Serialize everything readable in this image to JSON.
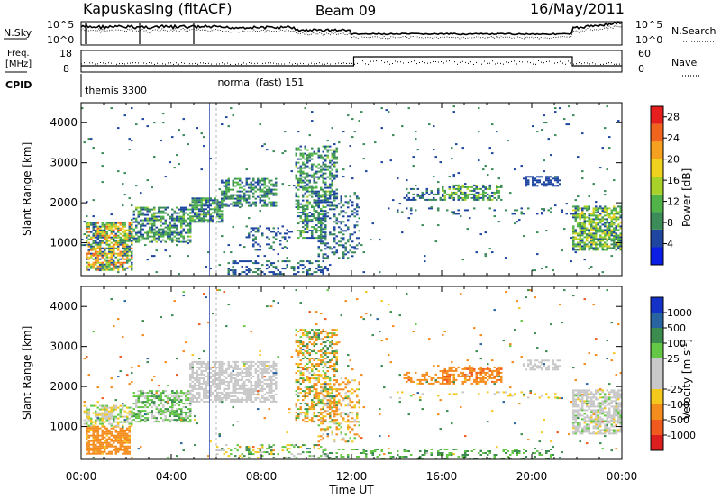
{
  "header": {
    "station": "Kapuskasing (fitACF)",
    "beam": "Beam 09",
    "date": "16/May/2011"
  },
  "noise_panel": {
    "left_label": "N.Sky",
    "left_ticks": [
      "10^5",
      "10^0"
    ],
    "right_label": "N.Search",
    "right_ticks": [
      "10^5",
      "10^0"
    ]
  },
  "freq_panel": {
    "left_label_1": "Freq.",
    "left_label_2": "[MHz]",
    "left_ticks": [
      "18",
      "8"
    ],
    "right_label": "Nave",
    "right_ticks": [
      "60",
      "0"
    ]
  },
  "cpid": {
    "label": "CPID",
    "modes": [
      {
        "name": "themis 3300",
        "start_hour": 0.0,
        "end_hour": 5.9
      },
      {
        "name": "normal (fast) 151",
        "start_hour": 5.9,
        "end_hour": 24.0
      }
    ]
  },
  "colors": {
    "power": [
      "#0a1ee6",
      "#1e46a0",
      "#3c8c5a",
      "#50b448",
      "#a8d22a",
      "#f0d21e",
      "#f5a01e",
      "#f0641e",
      "#e61e1e"
    ],
    "velocity": [
      "#1432c8",
      "#2864a0",
      "#3c8c50",
      "#64c846",
      "#c8c8c8",
      "#c8c8c8",
      "#f5c81e",
      "#f58c1e",
      "#f05a1e",
      "#dc1e1e"
    ]
  },
  "chart_data": [
    {
      "type": "heatmap",
      "name": "power",
      "xlabel": "Time UT",
      "ylabel": "Slant Range [km]",
      "x_ticks": [
        "00:00",
        "04:00",
        "08:00",
        "12:00",
        "16:00",
        "20:00",
        "00:00"
      ],
      "xlim": [
        0,
        24
      ],
      "ylim": [
        180,
        4500
      ],
      "y_ticks": [
        1000,
        2000,
        3000,
        4000
      ],
      "colorbar": {
        "label": "Power [dB]",
        "ticks": [
          4,
          8,
          12,
          16,
          20,
          24,
          28
        ],
        "range": [
          0,
          30
        ]
      },
      "regions": [
        {
          "t0": 0.2,
          "t1": 2.3,
          "r0": 300,
          "r1": 1500,
          "density": 0.75,
          "vlo": 4,
          "vhi": 26
        },
        {
          "t0": 2.3,
          "t1": 4.8,
          "r0": 1000,
          "r1": 1900,
          "density": 0.6,
          "vlo": 4,
          "vhi": 14
        },
        {
          "t0": 4.8,
          "t1": 6.2,
          "r0": 1500,
          "r1": 2100,
          "density": 0.75,
          "vlo": 4,
          "vhi": 14
        },
        {
          "t0": 6.2,
          "t1": 8.6,
          "r0": 1900,
          "r1": 2600,
          "density": 0.55,
          "vlo": 4,
          "vhi": 12
        },
        {
          "t0": 7.3,
          "t1": 9.3,
          "r0": 800,
          "r1": 1400,
          "density": 0.2,
          "vlo": 4,
          "vhi": 8
        },
        {
          "t0": 9.5,
          "t1": 11.3,
          "r0": 1900,
          "r1": 3400,
          "density": 0.45,
          "vlo": 4,
          "vhi": 14
        },
        {
          "t0": 9.6,
          "t1": 10.8,
          "r0": 1100,
          "r1": 1900,
          "density": 0.5,
          "vlo": 4,
          "vhi": 14
        },
        {
          "t0": 10.5,
          "t1": 12.3,
          "r0": 600,
          "r1": 2200,
          "density": 0.3,
          "vlo": 4,
          "vhi": 10
        },
        {
          "t0": 6.5,
          "t1": 11.0,
          "r0": 200,
          "r1": 550,
          "density": 0.35,
          "vlo": 4,
          "vhi": 8
        },
        {
          "t0": 14.3,
          "t1": 16.0,
          "r0": 2050,
          "r1": 2350,
          "density": 0.35,
          "vlo": 4,
          "vhi": 10
        },
        {
          "t0": 16.0,
          "t1": 18.7,
          "r0": 2050,
          "r1": 2450,
          "density": 0.6,
          "vlo": 4,
          "vhi": 16
        },
        {
          "t0": 19.6,
          "t1": 21.3,
          "r0": 2400,
          "r1": 2650,
          "density": 0.55,
          "vlo": 4,
          "vhi": 6
        },
        {
          "t0": 21.8,
          "t1": 24.0,
          "r0": 800,
          "r1": 1900,
          "density": 0.7,
          "vlo": 4,
          "vhi": 18
        },
        {
          "t0": 13.3,
          "t1": 21.8,
          "r0": 1700,
          "r1": 1850,
          "density": 0.12,
          "vlo": 4,
          "vhi": 8
        },
        {
          "t0": 0.0,
          "t1": 24.0,
          "r0": 200,
          "r1": 4400,
          "density": 0.015,
          "vlo": 4,
          "vhi": 10
        }
      ]
    },
    {
      "type": "heatmap",
      "name": "velocity",
      "xlabel": "Time UT",
      "ylabel": "Slant Range [km]",
      "x_ticks": [
        "00:00",
        "04:00",
        "08:00",
        "12:00",
        "16:00",
        "20:00",
        "00:00"
      ],
      "xlim": [
        0,
        24
      ],
      "ylim": [
        180,
        4500
      ],
      "y_ticks": [
        1000,
        2000,
        3000,
        4000
      ],
      "colorbar": {
        "label": "Velocity [m s^-1]",
        "ticks": [
          "1000",
          "500",
          "100",
          "25",
          "-25",
          "-100",
          "-500",
          "-1000"
        ],
        "range": [
          -1000,
          1000
        ]
      },
      "regions": [
        {
          "t0": 0.2,
          "t1": 2.2,
          "r0": 300,
          "r1": 1000,
          "density": 0.75,
          "vlo": -300,
          "vhi": -80
        },
        {
          "t0": 0.1,
          "t1": 2.3,
          "r0": 1000,
          "r1": 1500,
          "density": 0.6,
          "vlo": -60,
          "vhi": 60
        },
        {
          "t0": 2.3,
          "t1": 4.8,
          "r0": 1100,
          "r1": 1900,
          "density": 0.6,
          "vlo": -20,
          "vhi": 120
        },
        {
          "t0": 4.8,
          "t1": 8.6,
          "r0": 1600,
          "r1": 2600,
          "density": 0.65,
          "vlo": -20,
          "vhi": 20
        },
        {
          "t0": 9.5,
          "t1": 11.3,
          "r0": 1100,
          "r1": 3400,
          "density": 0.45,
          "vlo": -300,
          "vhi": 200
        },
        {
          "t0": 10.5,
          "t1": 12.3,
          "r0": 600,
          "r1": 2200,
          "density": 0.3,
          "vlo": -200,
          "vhi": 50
        },
        {
          "t0": 6.0,
          "t1": 11.0,
          "r0": 200,
          "r1": 550,
          "density": 0.3,
          "vlo": -80,
          "vhi": 150
        },
        {
          "t0": 11.0,
          "t1": 21.0,
          "r0": 180,
          "r1": 450,
          "density": 0.25,
          "vlo": 20,
          "vhi": 150
        },
        {
          "t0": 14.3,
          "t1": 16.0,
          "r0": 2050,
          "r1": 2350,
          "density": 0.35,
          "vlo": -400,
          "vhi": -80
        },
        {
          "t0": 16.0,
          "t1": 18.7,
          "r0": 2050,
          "r1": 2500,
          "density": 0.6,
          "vlo": -600,
          "vhi": -90
        },
        {
          "t0": 19.6,
          "t1": 21.3,
          "r0": 2400,
          "r1": 2650,
          "density": 0.55,
          "vlo": -20,
          "vhi": 20
        },
        {
          "t0": 21.8,
          "t1": 24.0,
          "r0": 800,
          "r1": 1900,
          "density": 0.7,
          "vlo": -30,
          "vhi": 30
        },
        {
          "t0": 13.3,
          "t1": 21.8,
          "r0": 1700,
          "r1": 1850,
          "density": 0.12,
          "vlo": -80,
          "vhi": 40
        },
        {
          "t0": 0.0,
          "t1": 24.0,
          "r0": 200,
          "r1": 4400,
          "density": 0.015,
          "vlo": -600,
          "vhi": 600
        }
      ]
    }
  ]
}
